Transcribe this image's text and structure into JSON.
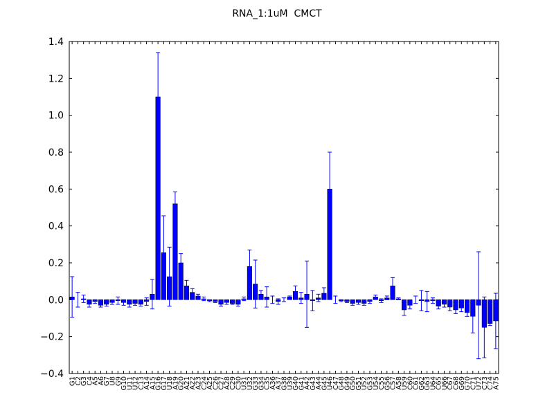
{
  "chart_data": {
    "type": "bar",
    "title": "RNA_1:1uM  CMCT",
    "categories": [
      "G1",
      "C2",
      "G3",
      "C4",
      "A5",
      "A6",
      "G7",
      "U8",
      "G9",
      "G10",
      "U11",
      "U12",
      "C13",
      "A14",
      "A15",
      "G16",
      "G17",
      "U18",
      "A19",
      "G20",
      "A21",
      "A22",
      "A23",
      "C24",
      "A25",
      "C26",
      "C27",
      "A28",
      "C29",
      "C30",
      "U31",
      "U32",
      "G33",
      "G34",
      "C35",
      "A36",
      "A37",
      "G38",
      "U39",
      "G40",
      "G41",
      "A42",
      "G43",
      "A44",
      "G45",
      "U46",
      "C47",
      "G48",
      "G49",
      "G50",
      "G51",
      "U52",
      "G53",
      "U54",
      "C55",
      "G56",
      "C57",
      "A58",
      "U59",
      "C60",
      "C61",
      "G62",
      "G63",
      "U64",
      "C65",
      "U66",
      "C67",
      "C68",
      "G69",
      "G70",
      "C71",
      "U72",
      "C73",
      "C74",
      "A75"
    ],
    "values": [
      0.015,
      0.0,
      0.005,
      -0.025,
      -0.01,
      -0.03,
      -0.025,
      -0.015,
      -0.005,
      -0.015,
      -0.025,
      -0.02,
      -0.025,
      -0.01,
      0.03,
      1.1,
      0.255,
      0.125,
      0.52,
      0.2,
      0.075,
      0.04,
      0.02,
      0.005,
      -0.005,
      -0.01,
      -0.025,
      -0.015,
      -0.02,
      -0.025,
      0.005,
      0.18,
      0.085,
      0.03,
      0.015,
      0.0,
      -0.01,
      0.0,
      0.015,
      0.045,
      0.01,
      0.03,
      -0.005,
      0.01,
      0.035,
      0.6,
      0.0,
      -0.005,
      -0.01,
      -0.02,
      -0.015,
      -0.02,
      -0.01,
      0.015,
      -0.005,
      0.01,
      0.075,
      0.005,
      -0.055,
      -0.03,
      0.0,
      -0.005,
      -0.01,
      -0.005,
      -0.035,
      -0.025,
      -0.04,
      -0.055,
      -0.045,
      -0.07,
      -0.09,
      -0.03,
      -0.15,
      -0.13,
      -0.115
    ],
    "errors": [
      0.11,
      0.04,
      0.02,
      0.015,
      0.01,
      0.01,
      0.01,
      0.01,
      0.02,
      0.015,
      0.015,
      0.01,
      0.01,
      0.02,
      0.08,
      0.24,
      0.2,
      0.16,
      0.065,
      0.05,
      0.03,
      0.02,
      0.01,
      0.01,
      0.005,
      0.005,
      0.01,
      0.01,
      0.005,
      0.01,
      0.01,
      0.09,
      0.13,
      0.02,
      0.055,
      0.02,
      0.015,
      0.01,
      0.005,
      0.03,
      0.03,
      0.18,
      0.055,
      0.02,
      0.03,
      0.2,
      0.02,
      0.005,
      0.005,
      0.01,
      0.01,
      0.01,
      0.01,
      0.01,
      0.01,
      0.01,
      0.045,
      0.005,
      0.03,
      0.02,
      0.02,
      0.055,
      0.055,
      0.015,
      0.015,
      0.015,
      0.02,
      0.02,
      0.02,
      0.02,
      0.09,
      0.29,
      0.165,
      0.01,
      0.15
    ],
    "color": "#0000ff",
    "ylim": [
      -0.4,
      1.4
    ],
    "yticks": [
      {
        "value": -0.4,
        "label": "−0.4"
      },
      {
        "value": -0.2,
        "label": "−0.2"
      },
      {
        "value": 0,
        "label": "0.0"
      },
      0.2,
      0.4,
      0.6,
      0.8,
      {
        "value": 1,
        "label": "1.0"
      },
      1.2,
      1.4
    ]
  }
}
